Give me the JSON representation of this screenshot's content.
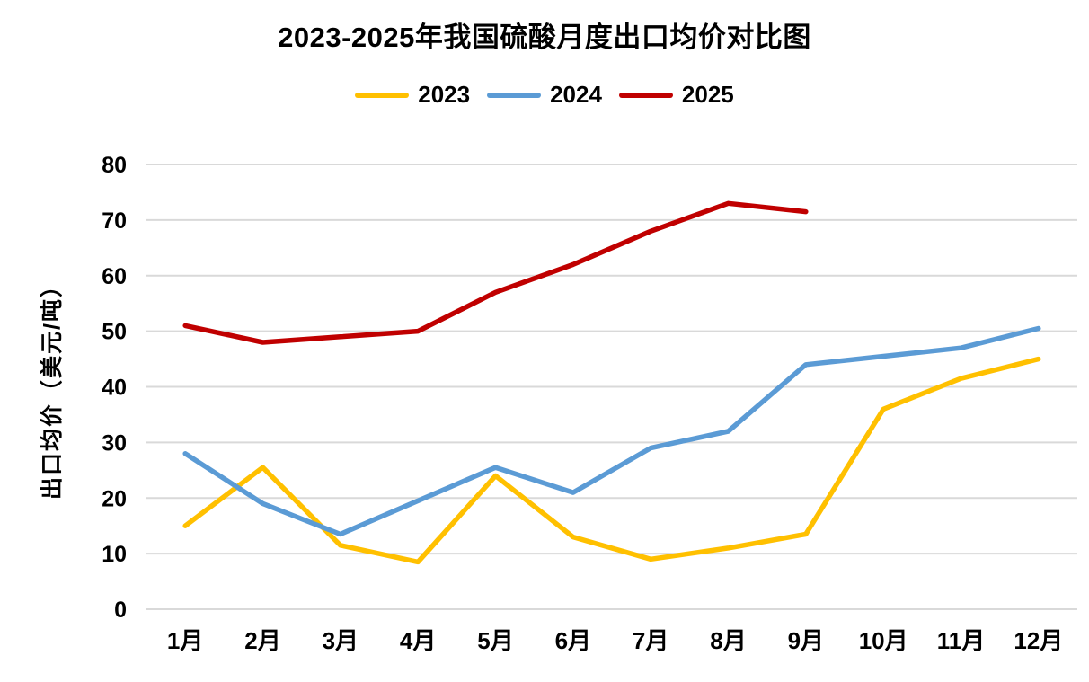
{
  "title": "2023-2025年我国硫酸月度出口均价对比图",
  "colors": {
    "background": "#ffffff",
    "gridline": "#d9d9d9",
    "text": "#000000",
    "series_2023": "#FFC000",
    "series_2024": "#5B9BD5",
    "series_2025": "#C00000"
  },
  "legend": {
    "items": [
      {
        "label": "2023",
        "color": "#FFC000"
      },
      {
        "label": "2024",
        "color": "#5B9BD5"
      },
      {
        "label": "2025",
        "color": "#C00000"
      }
    ]
  },
  "chart_data": {
    "type": "line",
    "title": "2023-2025年我国硫酸月度出口均价对比图",
    "xlabel": "",
    "ylabel": "出口均价（美元/吨）",
    "ylim": [
      0,
      80
    ],
    "yticks": [
      0,
      10,
      20,
      30,
      40,
      50,
      60,
      70,
      80
    ],
    "grid": true,
    "legend_position": "top-center",
    "categories": [
      "1月",
      "2月",
      "3月",
      "4月",
      "5月",
      "6月",
      "7月",
      "8月",
      "9月",
      "10月",
      "11月",
      "12月"
    ],
    "series": [
      {
        "name": "2023",
        "color": "#FFC000",
        "values": [
          15,
          25.5,
          11.5,
          8.5,
          24,
          13,
          9,
          11,
          13.5,
          36,
          41.5,
          45
        ]
      },
      {
        "name": "2024",
        "color": "#5B9BD5",
        "values": [
          28,
          19,
          13.5,
          19.5,
          25.5,
          21,
          29,
          32,
          44,
          45.5,
          47,
          50.5
        ]
      },
      {
        "name": "2025",
        "color": "#C00000",
        "values": [
          51,
          48,
          49,
          50,
          57,
          62,
          68,
          73,
          71.5
        ]
      }
    ]
  }
}
